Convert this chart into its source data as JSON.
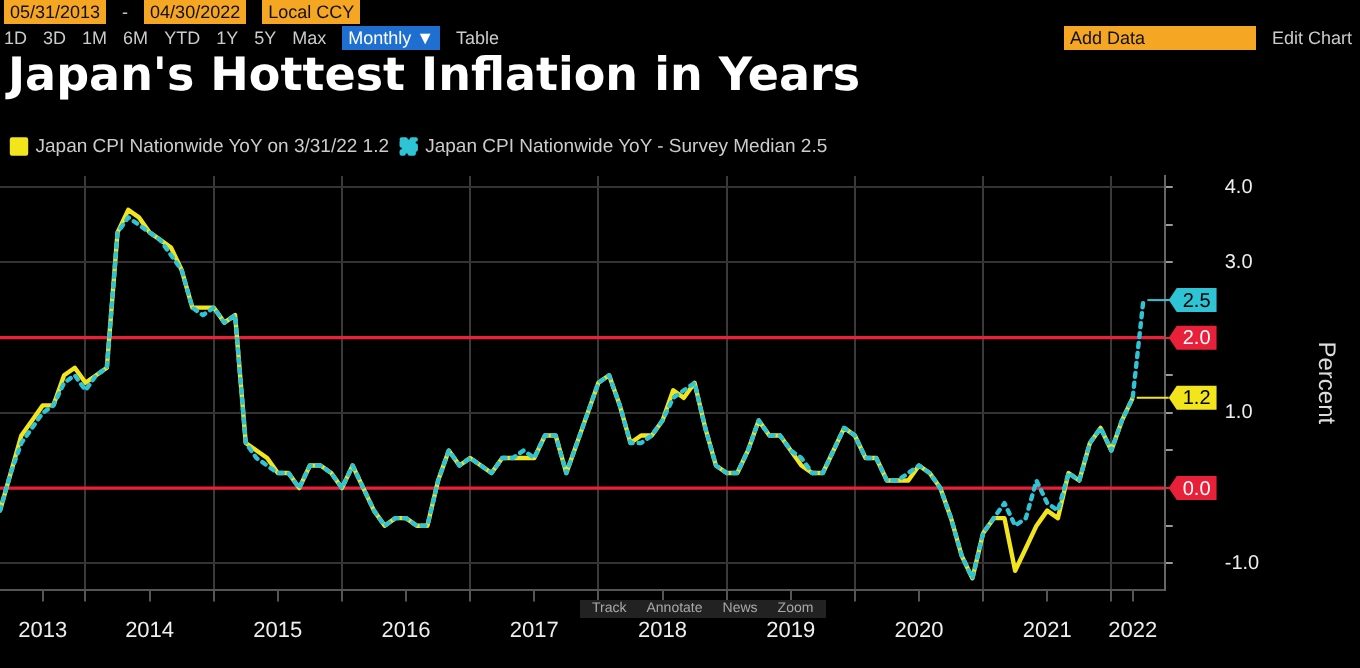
{
  "chart_data": {
    "type": "line",
    "title": "Japan's Hottest Inflation in Years",
    "x": [
      "2013-05",
      "2013-06",
      "2013-07",
      "2013-08",
      "2013-09",
      "2013-10",
      "2013-11",
      "2013-12",
      "2014-01",
      "2014-02",
      "2014-03",
      "2014-04",
      "2014-05",
      "2014-06",
      "2014-07",
      "2014-08",
      "2014-09",
      "2014-10",
      "2014-11",
      "2014-12",
      "2015-01",
      "2015-02",
      "2015-03",
      "2015-04",
      "2015-05",
      "2015-06",
      "2015-07",
      "2015-08",
      "2015-09",
      "2015-10",
      "2015-11",
      "2015-12",
      "2016-01",
      "2016-02",
      "2016-03",
      "2016-04",
      "2016-05",
      "2016-06",
      "2016-07",
      "2016-08",
      "2016-09",
      "2016-10",
      "2016-11",
      "2016-12",
      "2017-01",
      "2017-02",
      "2017-03",
      "2017-04",
      "2017-05",
      "2017-06",
      "2017-07",
      "2017-08",
      "2017-09",
      "2017-10",
      "2017-11",
      "2017-12",
      "2018-01",
      "2018-02",
      "2018-03",
      "2018-04",
      "2018-05",
      "2018-06",
      "2018-07",
      "2018-08",
      "2018-09",
      "2018-10",
      "2018-11",
      "2018-12",
      "2019-01",
      "2019-02",
      "2019-03",
      "2019-04",
      "2019-05",
      "2019-06",
      "2019-07",
      "2019-08",
      "2019-09",
      "2019-10",
      "2019-11",
      "2019-12",
      "2020-01",
      "2020-02",
      "2020-03",
      "2020-04",
      "2020-05",
      "2020-06",
      "2020-07",
      "2020-08",
      "2020-09",
      "2020-10",
      "2020-11",
      "2020-12",
      "2021-01",
      "2021-02",
      "2021-03",
      "2021-04",
      "2021-05",
      "2021-06",
      "2021-07",
      "2021-08",
      "2021-09",
      "2021-10",
      "2021-11",
      "2021-12",
      "2022-01",
      "2022-02",
      "2022-03",
      "2022-04"
    ],
    "series": [
      {
        "name": "Japan CPI Nationwide YoY on 3/31/22 1.2",
        "color": "#f2e51c",
        "line_style": "solid",
        "values": [
          -0.3,
          0.2,
          0.7,
          0.9,
          1.1,
          1.1,
          1.5,
          1.6,
          1.4,
          1.5,
          1.6,
          3.4,
          3.7,
          3.6,
          3.4,
          3.3,
          3.2,
          2.9,
          2.4,
          2.4,
          2.4,
          2.2,
          2.3,
          0.6,
          0.5,
          0.4,
          0.2,
          0.2,
          0.0,
          0.3,
          0.3,
          0.2,
          0.0,
          0.3,
          0.0,
          -0.3,
          -0.5,
          -0.4,
          -0.4,
          -0.5,
          -0.5,
          0.1,
          0.5,
          0.3,
          0.4,
          0.3,
          0.2,
          0.4,
          0.4,
          0.4,
          0.4,
          0.7,
          0.7,
          0.2,
          0.6,
          1.0,
          1.4,
          1.5,
          1.1,
          0.6,
          0.7,
          0.7,
          0.9,
          1.3,
          1.2,
          1.4,
          0.8,
          0.3,
          0.2,
          0.2,
          0.5,
          0.9,
          0.7,
          0.7,
          0.5,
          0.3,
          0.2,
          0.2,
          0.5,
          0.8,
          0.7,
          0.4,
          0.4,
          0.1,
          0.1,
          0.1,
          0.3,
          0.2,
          0.0,
          -0.4,
          -0.9,
          -1.2,
          -0.6,
          -0.4,
          -0.4,
          -1.1,
          -0.8,
          -0.5,
          -0.3,
          -0.4,
          0.2,
          0.1,
          0.6,
          0.8,
          0.5,
          0.9,
          1.2,
          null
        ]
      },
      {
        "name": "Japan CPI Nationwide YoY - Survey Median 2.5",
        "color": "#2ec4d6",
        "line_style": "dotted",
        "values": [
          -0.3,
          0.2,
          0.6,
          0.8,
          1.0,
          1.1,
          1.4,
          1.5,
          1.3,
          1.5,
          1.6,
          3.4,
          3.6,
          3.5,
          3.4,
          3.3,
          3.1,
          2.9,
          2.4,
          2.3,
          2.4,
          2.2,
          2.3,
          0.6,
          0.4,
          0.3,
          0.2,
          0.2,
          0.0,
          0.3,
          0.3,
          0.2,
          0.0,
          0.3,
          0.0,
          -0.3,
          -0.5,
          -0.4,
          -0.4,
          -0.5,
          -0.5,
          0.1,
          0.5,
          0.3,
          0.4,
          0.3,
          0.2,
          0.4,
          0.4,
          0.5,
          0.4,
          0.7,
          0.7,
          0.2,
          0.6,
          1.0,
          1.4,
          1.5,
          1.1,
          0.6,
          0.6,
          0.7,
          0.9,
          1.2,
          1.3,
          1.4,
          0.8,
          0.3,
          0.2,
          0.2,
          0.5,
          0.9,
          0.7,
          0.7,
          0.5,
          0.4,
          0.2,
          0.2,
          0.5,
          0.8,
          0.7,
          0.4,
          0.4,
          0.1,
          0.1,
          0.2,
          0.3,
          0.2,
          0.0,
          -0.4,
          -0.9,
          -1.2,
          -0.6,
          -0.4,
          -0.2,
          -0.5,
          -0.4,
          0.1,
          -0.2,
          -0.3,
          0.2,
          0.1,
          0.6,
          0.8,
          0.5,
          0.9,
          1.2,
          2.5
        ]
      }
    ],
    "xlim": [
      "2013-05",
      "2022-06"
    ],
    "xticks": [
      {
        "value": "2013-09",
        "label": "2013"
      },
      {
        "value": "2014-01",
        "label": null
      },
      {
        "value": "2014-07",
        "label": "2014"
      },
      {
        "value": "2015-01",
        "label": null
      },
      {
        "value": "2015-07",
        "label": "2015"
      },
      {
        "value": "2016-01",
        "label": null
      },
      {
        "value": "2016-07",
        "label": "2016"
      },
      {
        "value": "2017-01",
        "label": null
      },
      {
        "value": "2017-07",
        "label": "2017"
      },
      {
        "value": "2018-01",
        "label": null
      },
      {
        "value": "2018-07",
        "label": "2018"
      },
      {
        "value": "2019-01",
        "label": null
      },
      {
        "value": "2019-07",
        "label": "2019"
      },
      {
        "value": "2020-01",
        "label": null
      },
      {
        "value": "2020-07",
        "label": "2020"
      },
      {
        "value": "2021-01",
        "label": null
      },
      {
        "value": "2021-07",
        "label": "2021"
      },
      {
        "value": "2022-01",
        "label": null
      },
      {
        "value": "2022-03",
        "label": "2022"
      }
    ],
    "ylim": [
      -1.35,
      4.15
    ],
    "yticks": [
      {
        "value": -1,
        "label": "-1.0"
      },
      {
        "value": -0.5,
        "label": null
      },
      {
        "value": 0,
        "label": null
      },
      {
        "value": 0.5,
        "label": null
      },
      {
        "value": 1,
        "label": "1.0"
      },
      {
        "value": 1.5,
        "label": null
      },
      {
        "value": 2,
        "label": null
      },
      {
        "value": 2.5,
        "label": null
      },
      {
        "value": 3,
        "label": "3.0"
      },
      {
        "value": 3.5,
        "label": null
      },
      {
        "value": 4,
        "label": "4.0"
      }
    ],
    "ylabel": "Percent",
    "ref_lines": [
      {
        "axis": "y",
        "value": 2,
        "label": "2.0",
        "color": "#e8203a"
      },
      {
        "axis": "y",
        "value": 0,
        "label": "0.0",
        "color": "#e8203a"
      }
    ],
    "annotations": [
      "05/31/2013",
      "-",
      "04/30/2022",
      "Local CCY",
      "1D",
      "3D",
      "1M",
      "6M",
      "YTD",
      "1Y",
      "5Y",
      "Max",
      "Monthly ▼",
      "Table",
      "Add Data",
      "Edit Chart",
      {
        "text": "1.2",
        "x": "2022-03",
        "y": 1.2
      },
      {
        "text": "2.5",
        "x": "2022-04",
        "y": 2.5
      },
      "Track",
      "Annotate",
      "News",
      "Zoom"
    ],
    "grid": true,
    "legend": "top left",
    "marker": "none"
  }
}
